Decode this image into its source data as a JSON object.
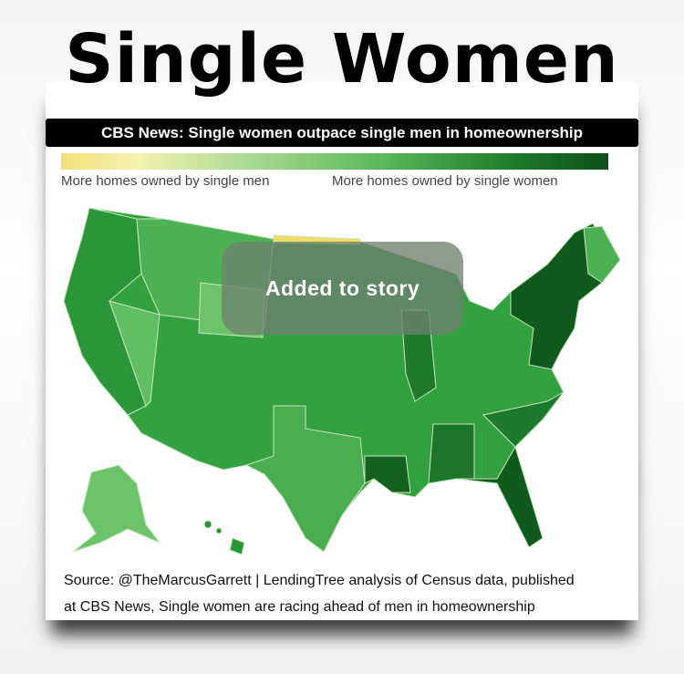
{
  "header": {
    "title": "Single Women",
    "subtitle": "CBS News: Single women outpace single men in homeownership"
  },
  "legend": {
    "low_label": "More homes owned by single men",
    "high_label": "More homes owned by single women"
  },
  "toast": {
    "text": "Added to story"
  },
  "source": {
    "lines": [
      "Source: @TheMarcusGarrett | LendingTree analysis of Census data, published",
      "at CBS News, Single women are racing ahead of men in homeownership"
    ]
  }
}
